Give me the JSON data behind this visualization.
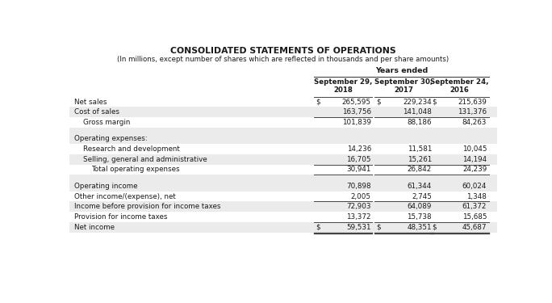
{
  "title": "CONSOLIDATED STATEMENTS OF OPERATIONS",
  "subtitle": "(In millions, except number of shares which are reflected in thousands and per share amounts)",
  "years_label": "Years ended",
  "col_headers": [
    "September 29,\n2018",
    "September 30,\n2017",
    "September 24,\n2016"
  ],
  "rows": [
    {
      "label": "Net sales",
      "indent": 0,
      "v1": "265,595",
      "v2": "229,234",
      "v3": "215,639",
      "bg": "#ffffff",
      "dollar": true,
      "top_line": true,
      "bot_line": false,
      "spacer": false
    },
    {
      "label": "Cost of sales",
      "indent": 0,
      "v1": "163,756",
      "v2": "141,048",
      "v3": "131,376",
      "bg": "#f0f0f0",
      "dollar": false,
      "top_line": false,
      "bot_line": false,
      "spacer": false
    },
    {
      "label": "Gross margin",
      "indent": 1,
      "v1": "101,839",
      "v2": "88,186",
      "v3": "84,263",
      "bg": "#ffffff",
      "dollar": false,
      "top_line": true,
      "bot_line": false,
      "spacer": false
    },
    {
      "label": "",
      "indent": 0,
      "v1": "",
      "v2": "",
      "v3": "",
      "bg": "#f0f0f0",
      "dollar": false,
      "top_line": false,
      "bot_line": false,
      "spacer": true
    },
    {
      "label": "Operating expenses:",
      "indent": 0,
      "v1": "",
      "v2": "",
      "v3": "",
      "bg": "#f0f0f0",
      "dollar": false,
      "top_line": false,
      "bot_line": false,
      "spacer": false
    },
    {
      "label": "Research and development",
      "indent": 1,
      "v1": "14,236",
      "v2": "11,581",
      "v3": "10,045",
      "bg": "#ffffff",
      "dollar": false,
      "top_line": false,
      "bot_line": false,
      "spacer": false
    },
    {
      "label": "Selling, general and administrative",
      "indent": 1,
      "v1": "16,705",
      "v2": "15,261",
      "v3": "14,194",
      "bg": "#f0f0f0",
      "dollar": false,
      "top_line": false,
      "bot_line": false,
      "spacer": false
    },
    {
      "label": "Total operating expenses",
      "indent": 2,
      "v1": "30,941",
      "v2": "26,842",
      "v3": "24,239",
      "bg": "#ffffff",
      "dollar": false,
      "top_line": true,
      "bot_line": true,
      "spacer": false
    },
    {
      "label": "",
      "indent": 0,
      "v1": "",
      "v2": "",
      "v3": "",
      "bg": "#f0f0f0",
      "dollar": false,
      "top_line": false,
      "bot_line": false,
      "spacer": true
    },
    {
      "label": "Operating income",
      "indent": 0,
      "v1": "70,898",
      "v2": "61,344",
      "v3": "60,024",
      "bg": "#f0f0f0",
      "dollar": false,
      "top_line": false,
      "bot_line": false,
      "spacer": false
    },
    {
      "label": "Other income/(expense), net",
      "indent": 0,
      "v1": "2,005",
      "v2": "2,745",
      "v3": "1,348",
      "bg": "#ffffff",
      "dollar": false,
      "top_line": false,
      "bot_line": true,
      "spacer": false
    },
    {
      "label": "Income before provision for income taxes",
      "indent": 0,
      "v1": "72,903",
      "v2": "64,089",
      "v3": "61,372",
      "bg": "#f0f0f0",
      "dollar": false,
      "top_line": false,
      "bot_line": false,
      "spacer": false
    },
    {
      "label": "Provision for income taxes",
      "indent": 0,
      "v1": "13,372",
      "v2": "15,738",
      "v3": "15,685",
      "bg": "#ffffff",
      "dollar": false,
      "top_line": false,
      "bot_line": false,
      "spacer": false
    },
    {
      "label": "Net income",
      "indent": 0,
      "v1": "59,531",
      "v2": "48,351",
      "v3": "45,687",
      "bg": "#f0f0f0",
      "dollar": true,
      "top_line": true,
      "bot_line": true,
      "spacer": false
    }
  ],
  "text_color": "#1a1a1a",
  "line_color": "#444444",
  "bg_color": "#ffffff",
  "gray_bg": "#ebebeb"
}
